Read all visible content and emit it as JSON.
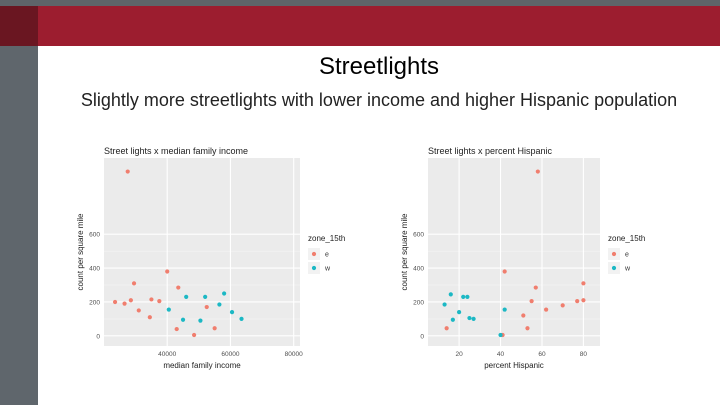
{
  "slide": {
    "title": "Streetlights",
    "subtitle": "Slightly more streetlights with lower income and higher Hispanic population"
  },
  "colors": {
    "e": "#f07e6e",
    "w": "#1cb8c4",
    "header": "#9c1d2f",
    "panel": "#ebebeb"
  },
  "chart_data": [
    {
      "type": "scatter",
      "title": "Street lights x median family income",
      "xlabel": "median family income",
      "ylabel": "count per square mile",
      "xlim": [
        20000,
        82000
      ],
      "ylim": [
        -60,
        1050
      ],
      "xticks": [
        40000,
        60000,
        80000
      ],
      "xtick_labels": [
        "40000",
        "60000",
        "80000"
      ],
      "yticks": [
        0,
        200,
        400,
        600
      ],
      "ytick_labels": [
        "0",
        "200",
        "400",
        "600"
      ],
      "grid": true,
      "legend": {
        "title": "zone_15th",
        "position": "right",
        "entries": [
          "e",
          "w"
        ]
      },
      "series": [
        {
          "name": "e",
          "points": [
            [
              27500,
              970
            ],
            [
              29500,
              310
            ],
            [
              28500,
              210
            ],
            [
              23500,
              200
            ],
            [
              26500,
              190
            ],
            [
              31000,
              150
            ],
            [
              35000,
              215
            ],
            [
              37500,
              205
            ],
            [
              34500,
              110
            ],
            [
              40000,
              380
            ],
            [
              43500,
              285
            ],
            [
              43000,
              40
            ],
            [
              48500,
              5
            ],
            [
              52500,
              170
            ],
            [
              55000,
              45
            ]
          ]
        },
        {
          "name": "w",
          "points": [
            [
              40500,
              155
            ],
            [
              46000,
              230
            ],
            [
              50500,
              90
            ],
            [
              45000,
              95
            ],
            [
              56500,
              185
            ],
            [
              58000,
              250
            ],
            [
              60500,
              140
            ],
            [
              63500,
              100
            ],
            [
              52000,
              230
            ]
          ]
        }
      ]
    },
    {
      "type": "scatter",
      "title": "Street lights x percent Hispanic",
      "xlabel": "percent Hispanic",
      "ylabel": "count per square mile",
      "xlim": [
        5,
        88
      ],
      "ylim": [
        -60,
        1050
      ],
      "xticks": [
        20,
        40,
        60,
        80
      ],
      "xtick_labels": [
        "20",
        "40",
        "60",
        "80"
      ],
      "yticks": [
        0,
        200,
        400,
        600
      ],
      "ytick_labels": [
        "0",
        "200",
        "400",
        "600"
      ],
      "grid": true,
      "legend": {
        "title": "zone_15th",
        "position": "right",
        "entries": [
          "e",
          "w"
        ]
      },
      "series": [
        {
          "name": "e",
          "points": [
            [
              58,
              970
            ],
            [
              42,
              380
            ],
            [
              57,
              285
            ],
            [
              80,
              310
            ],
            [
              55,
              205
            ],
            [
              77,
              205
            ],
            [
              80,
              210
            ],
            [
              70,
              180
            ],
            [
              62,
              155
            ],
            [
              51,
              120
            ],
            [
              53,
              45
            ],
            [
              14,
              45
            ],
            [
              41,
              5
            ]
          ]
        },
        {
          "name": "w",
          "points": [
            [
              16,
              245
            ],
            [
              13,
              185
            ],
            [
              22,
              230
            ],
            [
              24,
              230
            ],
            [
              27,
              100
            ],
            [
              25,
              105
            ],
            [
              17,
              95
            ],
            [
              20,
              140
            ],
            [
              42,
              155
            ],
            [
              40,
              5
            ]
          ]
        }
      ]
    }
  ]
}
